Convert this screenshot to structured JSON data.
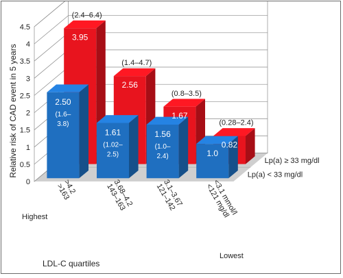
{
  "chart_data": {
    "type": "bar",
    "ylabel": "Relative risk of CAD event in 5 years",
    "xlabel": "LDL-C quartiles",
    "ylim": [
      0,
      4.5
    ],
    "yticks": [
      "0",
      "0.5",
      "1",
      "1.5",
      "2",
      "2.5",
      "3",
      "3.5",
      "4",
      "4.5"
    ],
    "grid": true,
    "categories": [
      {
        "label1": ">163",
        "label2": ">4.2",
        "qualifier": "Highest"
      },
      {
        "label1": "143–163",
        "label2": "3.68–4.2",
        "qualifier": ""
      },
      {
        "label1": "121–142",
        "label2": "3.1–3.67",
        "qualifier": ""
      },
      {
        "label1": "<121 mg/dl",
        "label2": "<3.1 mmol/l",
        "qualifier": "Lowest"
      }
    ],
    "series": [
      {
        "name": "Lp(a) < 33 mg/dl",
        "color": "#1f6fc0",
        "values": [
          2.5,
          1.61,
          1.56,
          1.0
        ],
        "value_labels": [
          "2.50",
          "1.61",
          "1.56",
          "1.0"
        ],
        "ci_lines": [
          [
            "(1.6–",
            "3.8)"
          ],
          [
            "(1.02–",
            "2.5)"
          ],
          [
            "(1.0–",
            "2.4)"
          ],
          []
        ]
      },
      {
        "name": "Lp(a) ≥ 33 mg/dl",
        "color": "#e8141e",
        "values": [
          3.95,
          2.56,
          1.67,
          0.82
        ],
        "value_labels": [
          "3.95",
          "2.56",
          "1.67",
          "0.82"
        ],
        "ci_labels": [
          "(2.4–6.4)",
          "(1.4–4.7)",
          "(0.8–3.5)",
          "(0.28–2.4)"
        ]
      }
    ]
  }
}
